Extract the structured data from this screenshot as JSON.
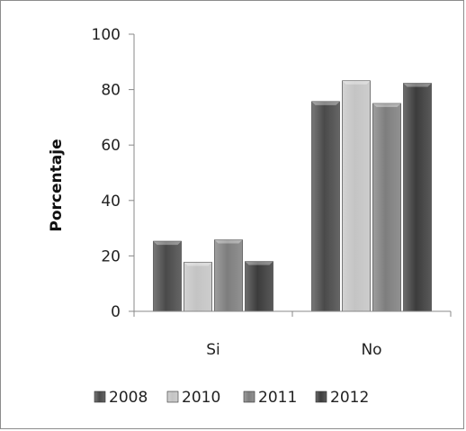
{
  "chart_data": {
    "type": "bar",
    "title": "",
    "xlabel": "",
    "ylabel": "Porcentaje",
    "ylim": [
      0,
      100
    ],
    "yticks": [
      0,
      20,
      40,
      60,
      80,
      100
    ],
    "grid": false,
    "legend_position": "bottom",
    "categories": [
      "Si",
      "No"
    ],
    "series": [
      {
        "name": "2008",
        "values": [
          25.3,
          75.7
        ],
        "color": "#4a4a4a"
      },
      {
        "name": "2010",
        "values": [
          17.7,
          83.2
        ],
        "color": "#c4c4c4"
      },
      {
        "name": "2011",
        "values": [
          25.8,
          75.0
        ],
        "color": "#7e7e7e"
      },
      {
        "name": "2012",
        "values": [
          18.0,
          82.3
        ],
        "color": "#3c3c3c"
      }
    ]
  }
}
